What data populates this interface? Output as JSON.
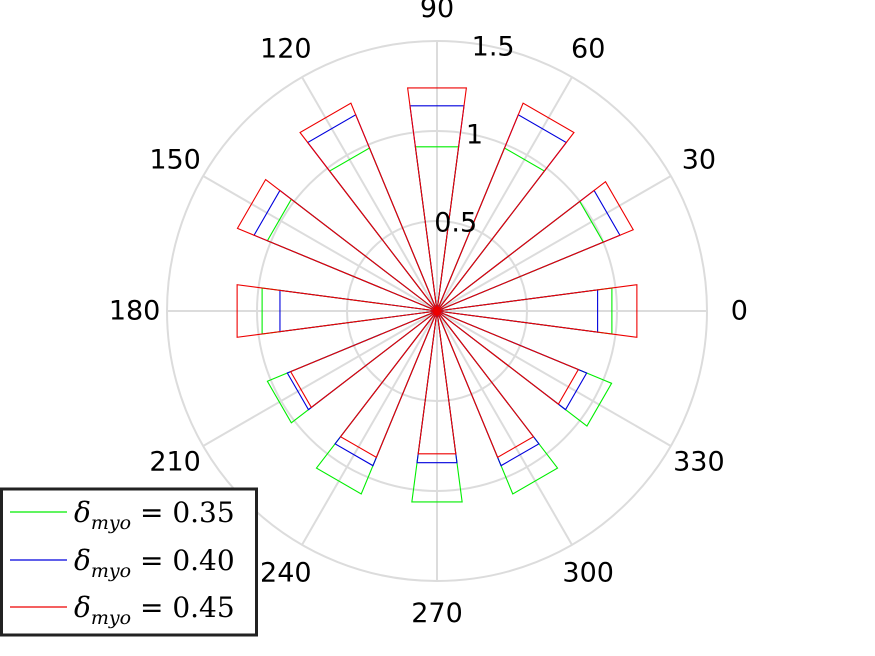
{
  "chart_data": {
    "type": "polar",
    "rose_bin_width_deg": 15,
    "r_max": 1.5,
    "r_ticks": [
      {
        "value": 0.5,
        "label": "0.5"
      },
      {
        "value": 1,
        "label": "1"
      },
      {
        "value": 1.5,
        "label": "1.5"
      }
    ],
    "angle_ticks": [
      {
        "deg": 0,
        "label": "0"
      },
      {
        "deg": 30,
        "label": "30"
      },
      {
        "deg": 60,
        "label": "60"
      },
      {
        "deg": 90,
        "label": "90"
      },
      {
        "deg": 120,
        "label": "120"
      },
      {
        "deg": 150,
        "label": "150"
      },
      {
        "deg": 180,
        "label": "180"
      },
      {
        "deg": 210,
        "label": "210"
      },
      {
        "deg": 240,
        "label": "240"
      },
      {
        "deg": 270,
        "label": "270"
      },
      {
        "deg": 300,
        "label": "300"
      },
      {
        "deg": 330,
        "label": "330"
      }
    ],
    "grid": true,
    "legend_position": "bottom-left",
    "series": [
      {
        "name": "δ_myo = 0.35",
        "color": "#00ee00",
        "values": [
          {
            "deg": 0,
            "r": 0.98
          },
          {
            "deg": 30,
            "r": 1.0
          },
          {
            "deg": 60,
            "r": 0.98
          },
          {
            "deg": 90,
            "r": 0.92
          },
          {
            "deg": 120,
            "r": 0.98
          },
          {
            "deg": 150,
            "r": 1.02
          },
          {
            "deg": 180,
            "r": 0.98
          },
          {
            "deg": 210,
            "r": 1.02
          },
          {
            "deg": 240,
            "r": 1.1
          },
          {
            "deg": 270,
            "r": 1.07
          },
          {
            "deg": 300,
            "r": 1.1
          },
          {
            "deg": 330,
            "r": 1.05
          }
        ]
      },
      {
        "name": "δ_myo = 0.40",
        "color": "#0000dd",
        "values": [
          {
            "deg": 0,
            "r": 0.9
          },
          {
            "deg": 30,
            "r": 1.1
          },
          {
            "deg": 60,
            "r": 1.18
          },
          {
            "deg": 90,
            "r": 1.15
          },
          {
            "deg": 120,
            "r": 1.18
          },
          {
            "deg": 150,
            "r": 1.1
          },
          {
            "deg": 180,
            "r": 0.88
          },
          {
            "deg": 210,
            "r": 0.9
          },
          {
            "deg": 240,
            "r": 0.93
          },
          {
            "deg": 270,
            "r": 0.85
          },
          {
            "deg": 300,
            "r": 0.93
          },
          {
            "deg": 330,
            "r": 0.9
          }
        ]
      },
      {
        "name": "δ_myo = 0.45",
        "color": "#ee0000",
        "values": [
          {
            "deg": 0,
            "r": 1.12
          },
          {
            "deg": 30,
            "r": 1.18
          },
          {
            "deg": 60,
            "r": 1.25
          },
          {
            "deg": 90,
            "r": 1.25
          },
          {
            "deg": 120,
            "r": 1.25
          },
          {
            "deg": 150,
            "r": 1.2
          },
          {
            "deg": 180,
            "r": 1.12
          },
          {
            "deg": 210,
            "r": 0.88
          },
          {
            "deg": 240,
            "r": 0.88
          },
          {
            "deg": 270,
            "r": 0.8
          },
          {
            "deg": 300,
            "r": 0.88
          },
          {
            "deg": 330,
            "r": 0.85
          }
        ]
      }
    ]
  },
  "legend": {
    "entries": [
      {
        "symbol": "δ",
        "subscript": "myo",
        "rest": " = 0.35",
        "color": "#00ee00"
      },
      {
        "symbol": "δ",
        "subscript": "myo",
        "rest": " = 0.40",
        "color": "#0000dd"
      },
      {
        "symbol": "δ",
        "subscript": "myo",
        "rest": " = 0.45",
        "color": "#ee0000"
      }
    ]
  }
}
